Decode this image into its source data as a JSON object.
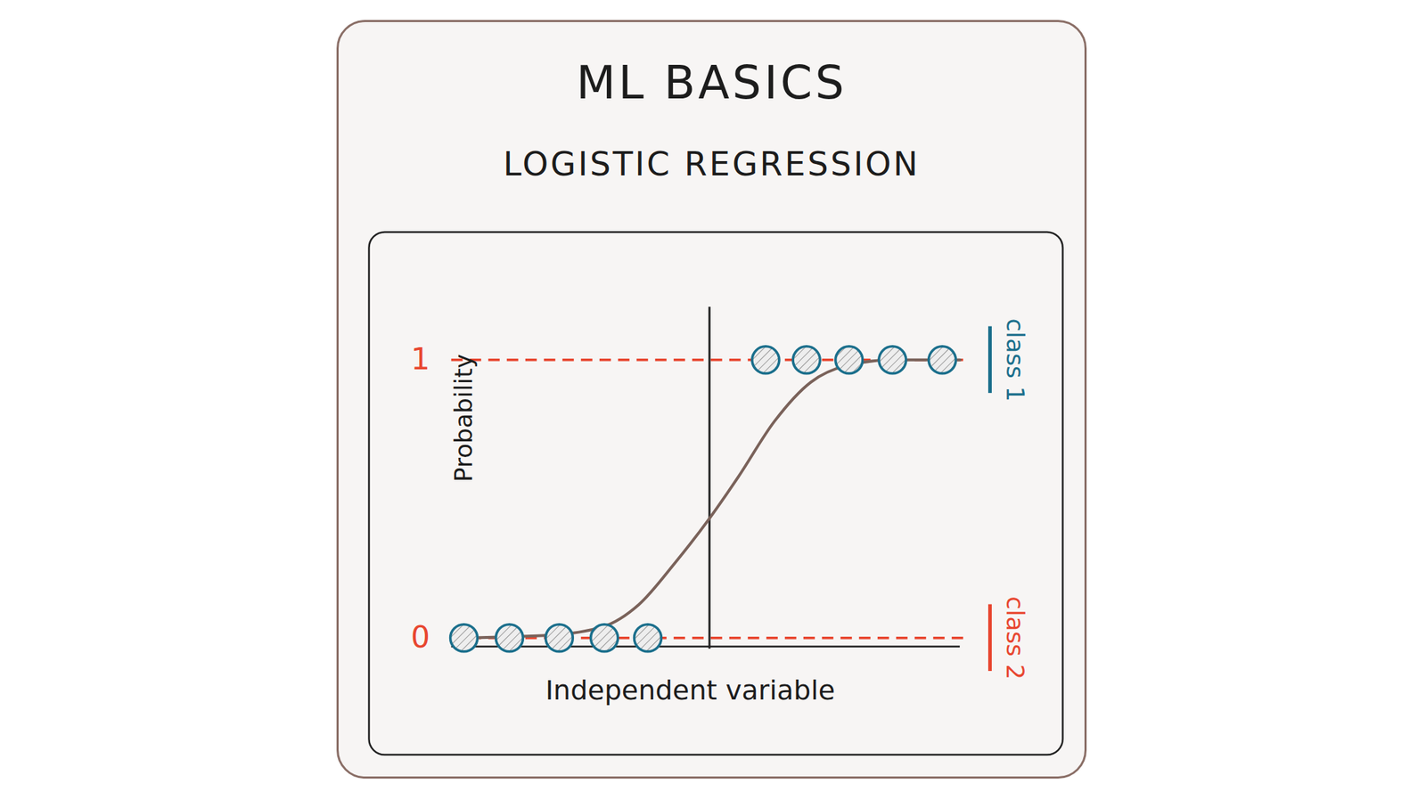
{
  "chart_data": {
    "type": "scatter",
    "title": "ML BASICS",
    "subtitle": "LOGISTIC REGRESSION",
    "x_label": "Independent variable",
    "y_label": "Probability",
    "xlim": [
      -8,
      8.3
    ],
    "ylim": [
      -0.42,
      1.46
    ],
    "yticks": [
      0,
      1
    ],
    "tick_labels": "y",
    "grid": true,
    "legend": "right",
    "decision_boundary": 0,
    "series": [
      {
        "name": "class 1",
        "type": "scatter",
        "marker": "circle",
        "color": "#1b6f8c",
        "colors": [
          "#1b6f8c",
          "#1b6f8c",
          "#1b6f8c",
          "#1b6f8c",
          "#1b6f8c"
        ],
        "x": [
          1.32,
          2.28,
          3.28,
          4.3,
          5.47
        ],
        "values": [
          1,
          1,
          1,
          1,
          1
        ]
      },
      {
        "name": "class 2",
        "type": "scatter",
        "marker": "circle",
        "color": "#e8462f",
        "colors": [
          "#1b6f8c",
          "#1b6f8c",
          "#1b6f8c",
          "#1b6f8c",
          "#1b6f8c"
        ],
        "x": [
          -5.77,
          -4.7,
          -3.53,
          -2.47,
          -1.45
        ],
        "values": [
          0,
          0,
          0,
          0,
          0
        ]
      },
      {
        "type": "line",
        "line_style": "solid",
        "color": "#7a625a",
        "x": [
          -6.06,
          -3.77,
          -2.51,
          -1.66,
          -0.81,
          0,
          0.68,
          1.53,
          2.38,
          3.23,
          4.3,
          5.89
        ],
        "values": [
          0,
          0.01,
          0.04,
          0.12,
          0.27,
          0.43,
          0.58,
          0.78,
          0.92,
          0.98,
          1.0,
          1.0
        ]
      }
    ]
  }
}
